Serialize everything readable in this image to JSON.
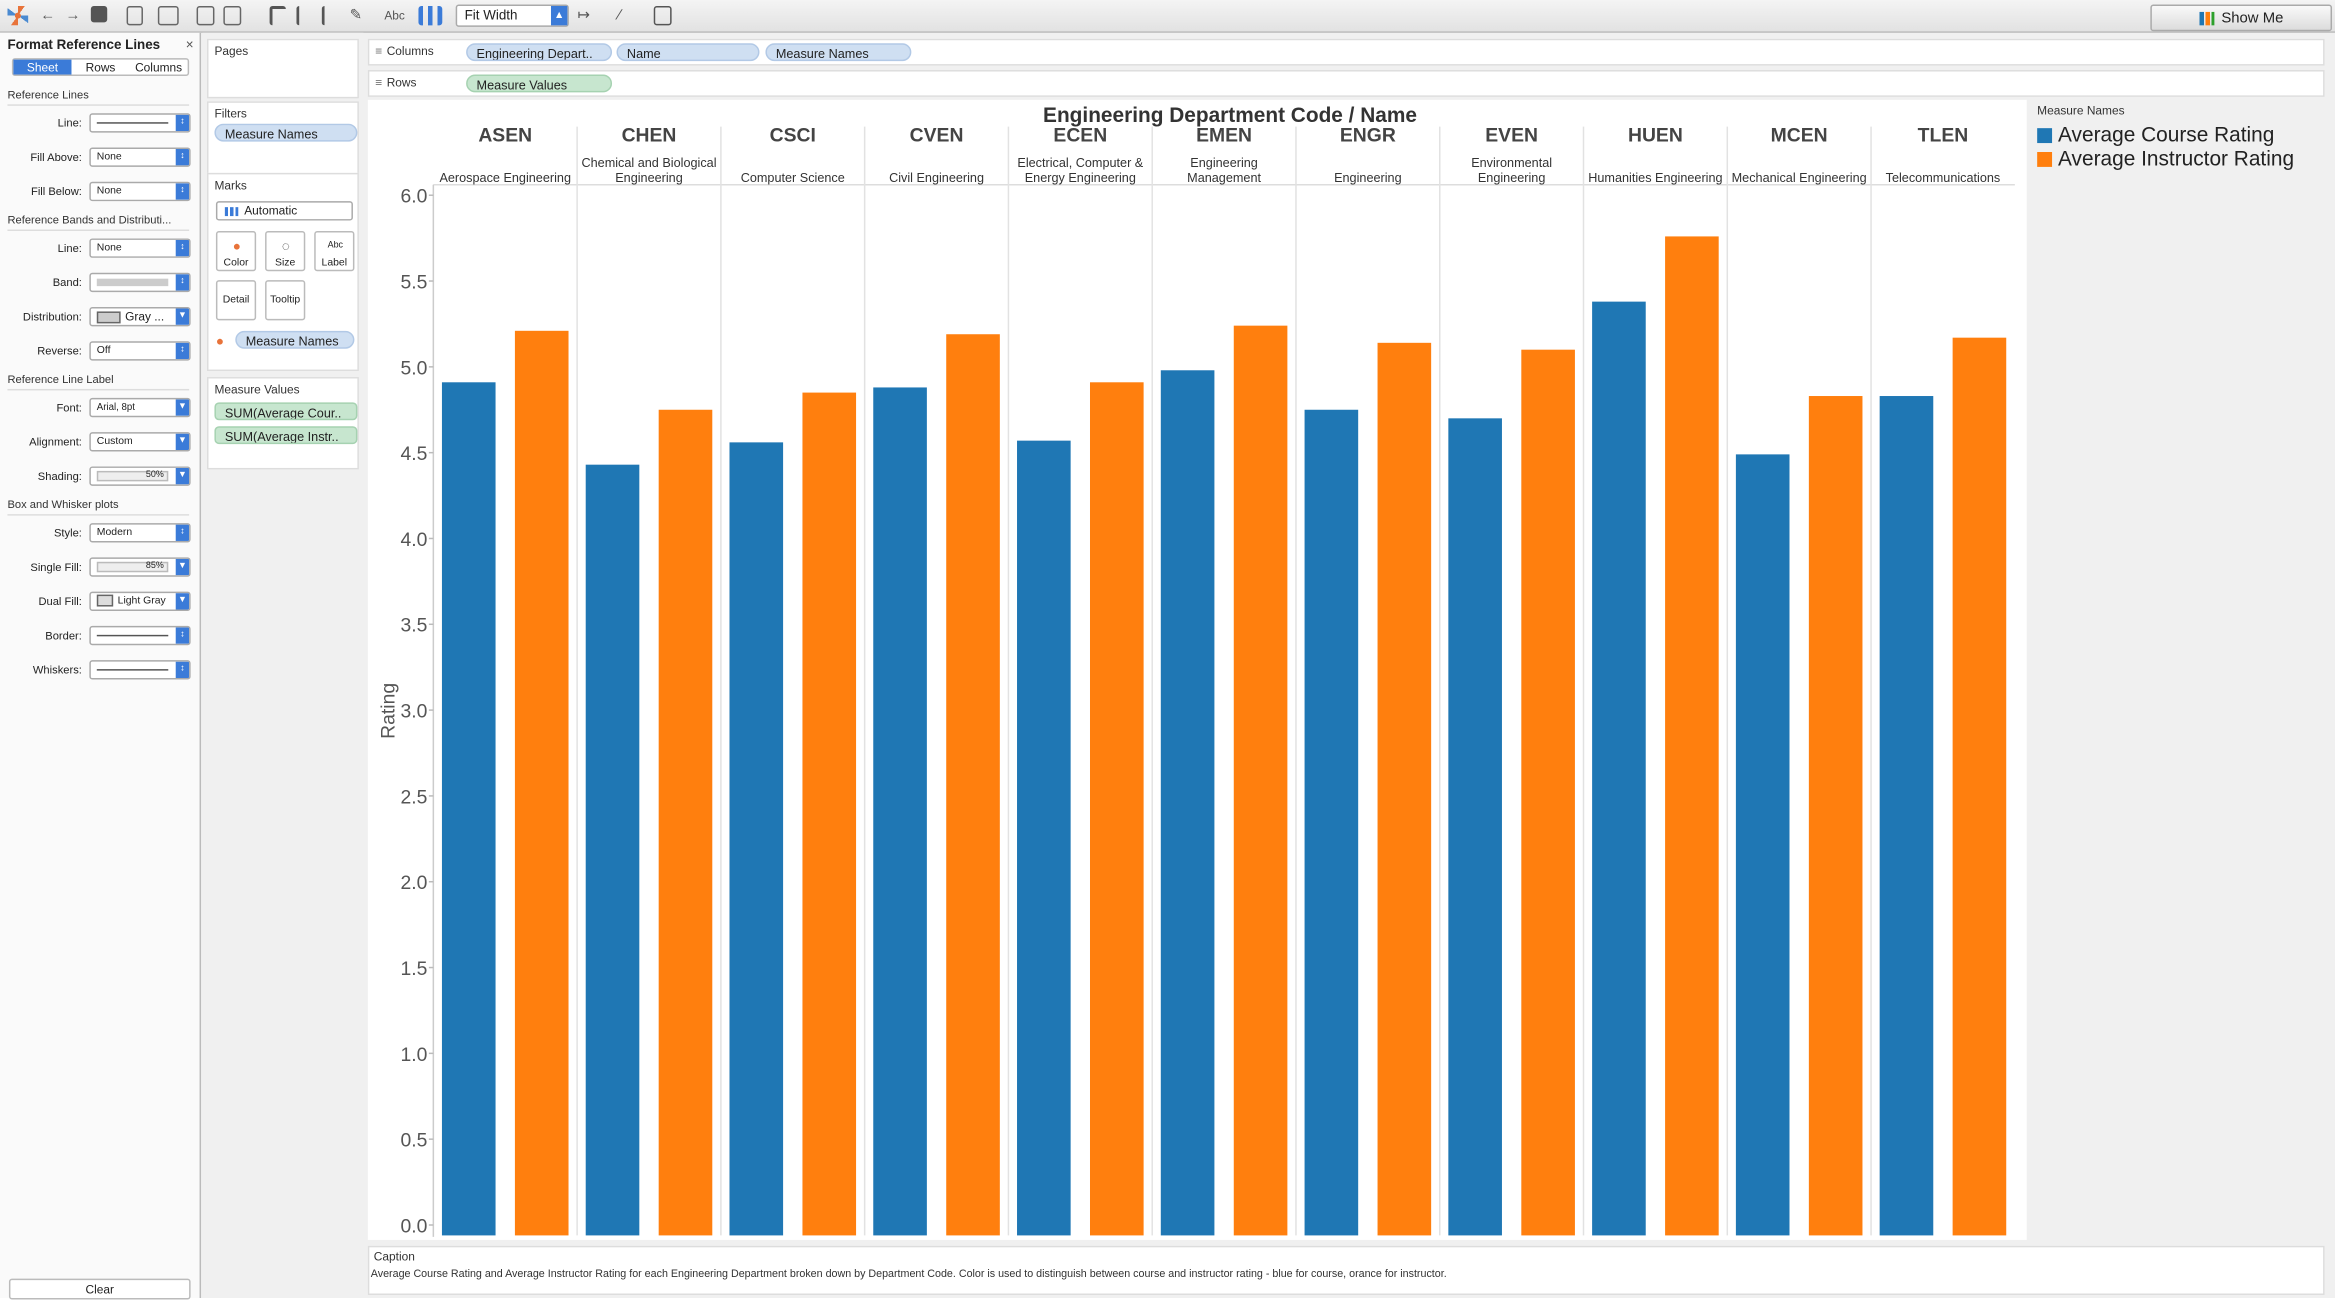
{
  "toolbar": {
    "fit_label": "Fit Width",
    "abc_label": "Abc",
    "show_me_label": "Show Me"
  },
  "format_pane": {
    "title": "Format Reference Lines",
    "close": "×",
    "tabs": [
      "Sheet",
      "Rows",
      "Columns"
    ],
    "active_tab": "Sheet",
    "sections": {
      "reference_lines": "Reference Lines",
      "bands": "Reference Bands and Distributi...",
      "line_label": "Reference Line Label",
      "box_whisker": "Box and Whisker plots"
    },
    "rows": {
      "line1": {
        "label": "Line:",
        "value": ""
      },
      "fill_above": {
        "label": "Fill Above:",
        "value": "None"
      },
      "fill_below": {
        "label": "Fill Below:",
        "value": "None"
      },
      "line2": {
        "label": "Line:",
        "value": "None"
      },
      "band": {
        "label": "Band:",
        "value": ""
      },
      "distribution": {
        "label": "Distribution:",
        "value": "Gray ..."
      },
      "reverse": {
        "label": "Reverse:",
        "value": "Off"
      },
      "font": {
        "label": "Font:",
        "value": "Arial, 8pt"
      },
      "alignment": {
        "label": "Alignment:",
        "value": "Custom"
      },
      "shading": {
        "label": "Shading:",
        "value": "50%"
      },
      "style": {
        "label": "Style:",
        "value": "Modern"
      },
      "single_fill": {
        "label": "Single Fill:",
        "value": "85%"
      },
      "dual_fill": {
        "label": "Dual Fill:",
        "value": "Light Gray"
      },
      "border": {
        "label": "Border:",
        "value": ""
      },
      "whiskers": {
        "label": "Whiskers:",
        "value": ""
      }
    },
    "clear_label": "Clear"
  },
  "cards": {
    "pages": "Pages",
    "filters": "Filters",
    "filter_pill": "Measure Names",
    "marks": "Marks",
    "mark_type": "Automatic",
    "mark_buttons": [
      "Color",
      "Size",
      "Label",
      "Detail",
      "Tooltip"
    ],
    "marks_pill": "Measure Names",
    "measure_values": "Measure Values",
    "mv_pills": [
      "SUM(Average Cour..",
      "SUM(Average Instr.."
    ]
  },
  "shelves": {
    "columns_label": "Columns",
    "columns_pills": [
      "Engineering Depart..",
      "Name",
      "Measure Names"
    ],
    "rows_label": "Rows",
    "rows_pill": "Measure Values"
  },
  "legend": {
    "title": "Measure Names",
    "items": [
      {
        "label": "Average Course Rating",
        "color": "#1f77b4"
      },
      {
        "label": "Average Instructor Rating",
        "color": "#ff7f0e"
      }
    ]
  },
  "caption": {
    "title": "Caption",
    "text": "Average Course Rating and Average Instructor Rating for each Engineering Department broken down by Department Code.  Color is used to distinguish between course and instructor rating - blue for course, orance for instructor."
  },
  "chart_data": {
    "type": "bar",
    "title": "Engineering Department Code  /  Name",
    "ylabel": "Rating",
    "ylim": [
      0,
      6
    ],
    "yticks": [
      "0.0",
      "0.5",
      "1.0",
      "1.5",
      "2.0",
      "2.5",
      "3.0",
      "3.5",
      "4.0",
      "4.5",
      "5.0",
      "5.5",
      "6.0"
    ],
    "categories": [
      {
        "code": "ASEN",
        "name": [
          "Aerospace Engineering"
        ]
      },
      {
        "code": "CHEN",
        "name": [
          "Chemical and Biological",
          "Engineering"
        ]
      },
      {
        "code": "CSCI",
        "name": [
          "Computer Science"
        ]
      },
      {
        "code": "CVEN",
        "name": [
          "Civil Engineering"
        ]
      },
      {
        "code": "ECEN",
        "name": [
          "Electrical, Computer &",
          "Energy Engineering"
        ]
      },
      {
        "code": "EMEN",
        "name": [
          "Engineering",
          "Management"
        ]
      },
      {
        "code": "ENGR",
        "name": [
          "Engineering"
        ]
      },
      {
        "code": "EVEN",
        "name": [
          "Environmental",
          "Engineering"
        ]
      },
      {
        "code": "HUEN",
        "name": [
          "Humanities Engineering"
        ]
      },
      {
        "code": "MCEN",
        "name": [
          "Mechanical Engineering"
        ]
      },
      {
        "code": "TLEN",
        "name": [
          "Telecommunications"
        ]
      }
    ],
    "series": [
      {
        "name": "Average Course Rating",
        "color": "#1f77b4",
        "values": [
          4.91,
          4.43,
          4.56,
          4.88,
          4.57,
          4.98,
          4.75,
          4.7,
          5.38,
          4.49,
          4.83
        ]
      },
      {
        "name": "Average Instructor Rating",
        "color": "#ff7f0e",
        "values": [
          5.21,
          4.75,
          4.85,
          5.19,
          4.91,
          5.24,
          5.14,
          5.1,
          5.76,
          4.83,
          5.17
        ]
      }
    ],
    "grid": false,
    "legend_position": "right"
  }
}
